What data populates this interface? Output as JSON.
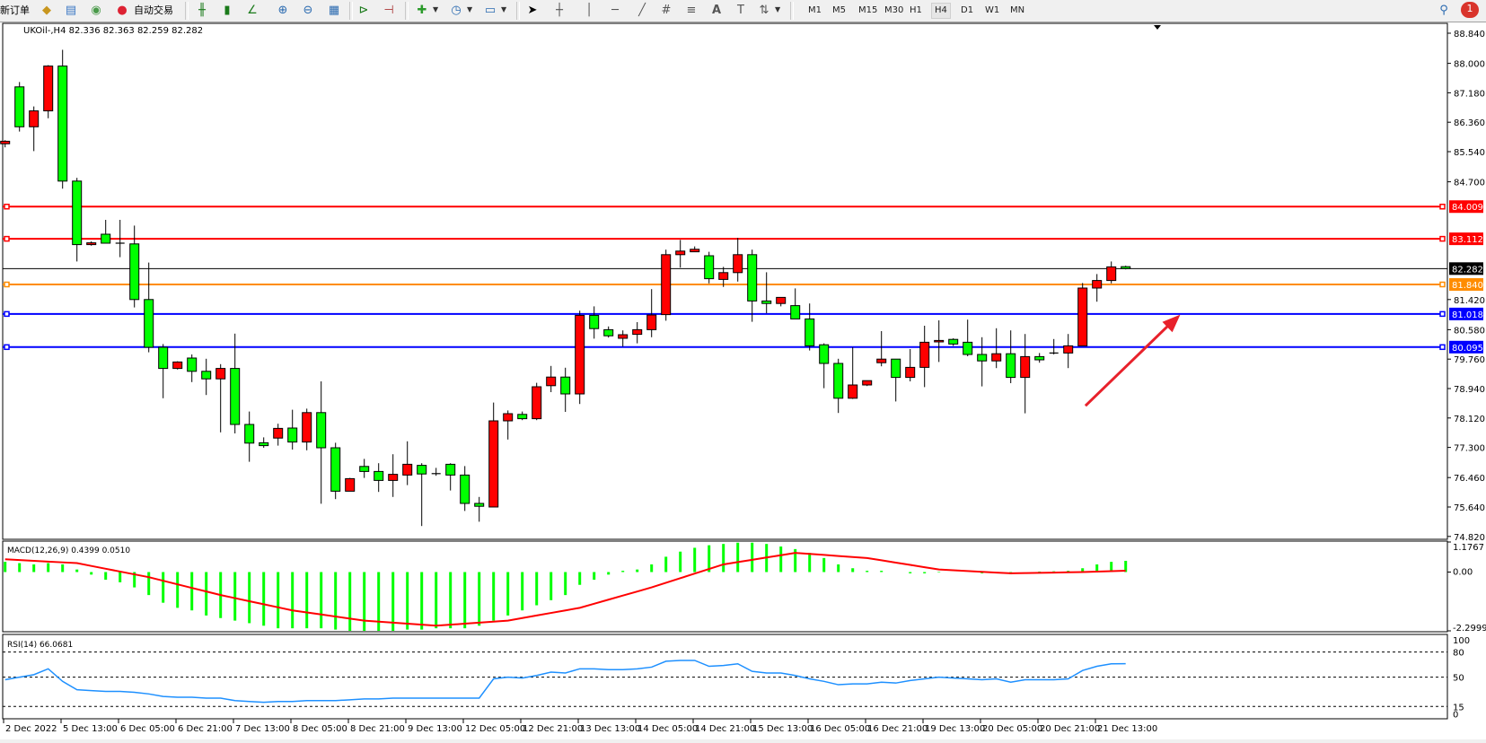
{
  "toolbar": {
    "new_order_label": "新订单",
    "auto_trading_label": "自动交易",
    "icons": [
      "metaeditor-icon",
      "navigator-icon",
      "signals-icon",
      "auto-trading-icon",
      "bar-chart-icon",
      "candlestick-icon",
      "line-chart-icon",
      "zoom-in-icon",
      "zoom-out-icon",
      "tile-windows-icon",
      "autoscroll-icon",
      "chart-shift-icon",
      "new-chart-icon",
      "periods-icon",
      "templates-icon",
      "cursor-icon",
      "crosshair-icon",
      "vertical-line-icon",
      "horizontal-line-icon",
      "trendline-icon",
      "fibonacci-channel-icon",
      "fibonacci-fan-icon",
      "text-icon",
      "text-label-icon",
      "arrows-icon",
      "search-icon",
      "notifications-icon"
    ],
    "timeframes": [
      "M1",
      "M5",
      "M15",
      "M30",
      "H1",
      "H4",
      "D1",
      "W1",
      "MN"
    ],
    "selected_timeframe": "H4",
    "notification_count": "1"
  },
  "chart_data": {
    "type": "candlestick",
    "title": "UKOil-,H4  82.336 82.363 82.259 82.282",
    "symbol": "UKOil-",
    "timeframe": "H4",
    "ohlc_format": [
      "open",
      "high",
      "low",
      "close"
    ],
    "ylim": [
      74.82,
      88.84
    ],
    "colors": {
      "bull": "#ff0000",
      "bear": "#00ff00",
      "wick": "#000000"
    },
    "y_ticks": [
      "88.840",
      "88.000",
      "87.180",
      "86.360",
      "85.540",
      "84.700",
      "81.420",
      "80.580",
      "79.760",
      "78.940",
      "78.120",
      "77.300",
      "76.460",
      "75.640",
      "74.820"
    ],
    "x_ticks": [
      "2 Dec 2022",
      "5 Dec 13:00",
      "6 Dec 05:00",
      "6 Dec 21:00",
      "7 Dec 13:00",
      "8 Dec 05:00",
      "8 Dec 21:00",
      "9 Dec 13:00",
      "12 Dec 05:00",
      "12 Dec 21:00",
      "13 Dec 13:00",
      "14 Dec 05:00",
      "14 Dec 21:00",
      "15 Dec 13:00",
      "16 Dec 05:00",
      "16 Dec 21:00",
      "19 Dec 13:00",
      "20 Dec 05:00",
      "20 Dec 21:00",
      "21 Dec 13:00"
    ],
    "candles": [
      [
        85.76,
        85.86,
        85.66,
        85.83
      ],
      [
        87.345,
        87.48,
        86.1,
        86.233
      ],
      [
        86.233,
        86.8,
        85.555,
        86.676
      ],
      [
        86.676,
        87.95,
        86.47,
        87.924
      ],
      [
        87.924,
        88.376,
        84.51,
        84.72
      ],
      [
        84.72,
        84.81,
        82.48,
        82.95
      ],
      [
        82.95,
        83.04,
        82.92,
        83.0
      ],
      [
        83.24,
        83.64,
        82.99,
        82.99
      ],
      [
        82.99,
        83.64,
        82.6,
        82.98
      ],
      [
        82.97,
        83.48,
        81.2,
        81.42
      ],
      [
        81.42,
        82.45,
        79.95,
        80.09
      ],
      [
        80.09,
        80.18,
        78.67,
        79.5
      ],
      [
        79.5,
        79.7,
        79.47,
        79.68
      ],
      [
        79.79,
        79.89,
        79.12,
        79.42
      ],
      [
        79.42,
        79.77,
        78.76,
        79.21
      ],
      [
        79.21,
        79.62,
        77.72,
        79.5
      ],
      [
        79.5,
        80.47,
        77.69,
        77.94
      ],
      [
        77.94,
        78.3,
        76.9,
        77.42
      ],
      [
        77.43,
        77.58,
        77.29,
        77.35
      ],
      [
        77.56,
        77.96,
        77.35,
        77.83
      ],
      [
        77.84,
        78.35,
        77.24,
        77.45
      ],
      [
        77.45,
        78.38,
        77.22,
        78.27
      ],
      [
        78.27,
        79.14,
        75.73,
        77.29
      ],
      [
        77.29,
        77.43,
        75.86,
        76.08
      ],
      [
        76.08,
        76.45,
        76.08,
        76.43
      ],
      [
        76.77,
        76.98,
        76.45,
        76.63
      ],
      [
        76.63,
        76.86,
        76.06,
        76.38
      ],
      [
        76.38,
        77.11,
        75.92,
        76.55
      ],
      [
        76.53,
        77.47,
        76.25,
        76.83
      ],
      [
        76.8,
        76.86,
        75.11,
        76.56
      ],
      [
        76.57,
        76.73,
        76.51,
        76.57
      ],
      [
        76.83,
        76.86,
        76.1,
        76.53
      ],
      [
        76.53,
        76.78,
        75.53,
        75.74
      ],
      [
        75.74,
        75.92,
        75.23,
        75.66
      ],
      [
        75.64,
        78.55,
        75.64,
        78.04
      ],
      [
        78.04,
        78.33,
        77.52,
        78.24
      ],
      [
        78.22,
        78.3,
        78.06,
        78.1
      ],
      [
        78.1,
        79.1,
        78.06,
        78.99
      ],
      [
        79.02,
        79.57,
        78.84,
        79.26
      ],
      [
        79.26,
        79.52,
        78.29,
        78.79
      ],
      [
        78.79,
        81.11,
        78.51,
        80.98
      ],
      [
        80.98,
        81.23,
        80.33,
        80.61
      ],
      [
        80.58,
        80.67,
        80.36,
        80.41
      ],
      [
        80.34,
        80.56,
        80.11,
        80.44
      ],
      [
        80.45,
        80.79,
        80.2,
        80.58
      ],
      [
        80.58,
        81.71,
        80.37,
        80.99
      ],
      [
        81.0,
        82.81,
        80.83,
        82.67
      ],
      [
        82.67,
        83.08,
        82.31,
        82.77
      ],
      [
        82.75,
        82.9,
        82.75,
        82.82
      ],
      [
        82.64,
        82.75,
        81.87,
        82.0
      ],
      [
        81.98,
        82.33,
        81.77,
        82.17
      ],
      [
        82.17,
        83.14,
        81.92,
        82.67
      ],
      [
        82.67,
        82.81,
        80.8,
        81.38
      ],
      [
        81.38,
        82.18,
        81.04,
        81.31
      ],
      [
        81.31,
        81.48,
        81.23,
        81.48
      ],
      [
        81.25,
        81.73,
        80.88,
        80.88
      ],
      [
        80.88,
        81.31,
        80.0,
        80.13
      ],
      [
        80.16,
        80.2,
        78.95,
        79.64
      ],
      [
        79.64,
        79.77,
        78.26,
        78.67
      ],
      [
        78.67,
        80.09,
        78.65,
        79.04
      ],
      [
        79.04,
        79.16,
        79.01,
        79.16
      ],
      [
        79.66,
        80.54,
        79.56,
        79.76
      ],
      [
        79.76,
        79.76,
        78.58,
        79.25
      ],
      [
        79.25,
        80.04,
        79.14,
        79.53
      ],
      [
        79.53,
        80.69,
        78.98,
        80.23
      ],
      [
        80.24,
        80.84,
        79.68,
        80.28
      ],
      [
        80.31,
        80.34,
        80.13,
        80.18
      ],
      [
        80.23,
        80.86,
        79.84,
        79.89
      ],
      [
        79.89,
        80.37,
        79.0,
        79.71
      ],
      [
        79.71,
        80.62,
        79.51,
        79.91
      ],
      [
        79.91,
        80.56,
        79.09,
        79.25
      ],
      [
        79.25,
        80.46,
        78.25,
        79.83
      ],
      [
        79.83,
        79.93,
        79.66,
        79.74
      ],
      [
        79.93,
        80.32,
        79.89,
        79.93
      ],
      [
        79.93,
        80.46,
        79.51,
        80.13
      ],
      [
        80.13,
        81.88,
        80.13,
        81.74
      ],
      [
        81.74,
        82.13,
        81.36,
        81.95
      ],
      [
        81.95,
        82.48,
        81.87,
        82.33
      ],
      [
        82.336,
        82.363,
        82.259,
        82.282
      ]
    ],
    "levels": [
      {
        "label": "84.009",
        "value": 84.009,
        "color": "#ff0000"
      },
      {
        "label": "83.112",
        "value": 83.112,
        "color": "#ff0000"
      },
      {
        "label": "81.840",
        "value": 81.84,
        "color": "#ff8c00"
      },
      {
        "label": "81.018",
        "value": 81.018,
        "color": "#0000ff"
      },
      {
        "label": "80.095",
        "value": 80.095,
        "color": "#0000ff"
      }
    ],
    "bid": {
      "label": "82.282",
      "value": 82.282,
      "color": "#000000"
    },
    "annotation": {
      "type": "arrow",
      "color": "#e8212b",
      "from_candle": 75.2,
      "from_price": 78.46,
      "to_candle": 81.8,
      "to_price": 81.0
    },
    "macd": {
      "title": "MACD(12,26,9) 0.4399 0.0510",
      "ylim": [
        -2.2999,
        1.1767
      ],
      "y_ticks": [
        "1.1767",
        "0.00",
        "-2.2999"
      ],
      "histogram_color": "#00ff00",
      "signal_color": "#ff0000",
      "histogram": [
        0.4,
        0.35,
        0.3,
        0.35,
        0.3,
        0.1,
        -0.1,
        -0.3,
        -0.4,
        -0.6,
        -0.9,
        -1.2,
        -1.4,
        -1.5,
        -1.7,
        -1.8,
        -1.9,
        -2.0,
        -2.1,
        -2.2,
        -2.2,
        -2.2,
        -2.2,
        -2.25,
        -2.3,
        -2.3,
        -2.3,
        -2.3,
        -2.25,
        -2.25,
        -2.2,
        -2.2,
        -2.2,
        -2.1,
        -1.9,
        -1.7,
        -1.5,
        -1.3,
        -1.1,
        -0.9,
        -0.5,
        -0.3,
        -0.1,
        0.05,
        0.1,
        0.3,
        0.6,
        0.8,
        0.95,
        1.05,
        1.1,
        1.15,
        1.15,
        1.1,
        1.0,
        0.9,
        0.75,
        0.55,
        0.3,
        0.15,
        0.05,
        0.05,
        0.0,
        -0.05,
        -0.05,
        -0.02,
        0.0,
        0.0,
        -0.05,
        -0.05,
        -0.08,
        0.0,
        0.02,
        0.03,
        0.05,
        0.15,
        0.3,
        0.4,
        0.4399
      ],
      "signal": [
        0.5,
        0.47,
        0.44,
        0.41,
        0.38,
        0.35,
        0.24,
        0.13,
        0.02,
        -0.09,
        -0.2,
        -0.34,
        -0.48,
        -0.62,
        -0.76,
        -0.9,
        -1.02,
        -1.14,
        -1.26,
        -1.38,
        -1.5,
        -1.58,
        -1.66,
        -1.74,
        -1.82,
        -1.9,
        -1.94,
        -1.98,
        -2.02,
        -2.06,
        -2.1,
        -2.06,
        -2.02,
        -1.98,
        -1.94,
        -1.9,
        -1.8,
        -1.7,
        -1.6,
        -1.5,
        -1.4,
        -1.24,
        -1.08,
        -0.92,
        -0.76,
        -0.6,
        -0.42,
        -0.24,
        -0.06,
        0.12,
        0.3,
        0.39,
        0.48,
        0.57,
        0.66,
        0.75,
        0.71,
        0.67,
        0.63,
        0.59,
        0.55,
        0.46,
        0.37,
        0.28,
        0.19,
        0.1,
        0.07,
        0.04,
        0.01,
        -0.02,
        -0.05,
        -0.04,
        -0.03,
        -0.02,
        -0.01,
        0.0,
        0.017,
        0.034,
        0.051
      ]
    },
    "rsi": {
      "title": "RSI(14) 66.0681",
      "ylim": [
        0,
        100
      ],
      "y_ticks": [
        "100",
        "80",
        "50",
        "15",
        "0"
      ],
      "levels": [
        80,
        50,
        15
      ],
      "color": "#1e90ff",
      "values": [
        47,
        50,
        53,
        60,
        45,
        35,
        34,
        33,
        33,
        32,
        30,
        27,
        26,
        26,
        25,
        25,
        22,
        21,
        20,
        21,
        21,
        22,
        22,
        22,
        23,
        24,
        24,
        25,
        25,
        25,
        25,
        25,
        25,
        25,
        48,
        50,
        49,
        52,
        56,
        55,
        60,
        60,
        59,
        59,
        60,
        62,
        69,
        70,
        70,
        63,
        64,
        66,
        57,
        55,
        55,
        52,
        48,
        45,
        41,
        42,
        42,
        44,
        43,
        46,
        48,
        50,
        49,
        48,
        47,
        48,
        44,
        47,
        47,
        47,
        48,
        58,
        63,
        66,
        66.0681
      ]
    }
  }
}
